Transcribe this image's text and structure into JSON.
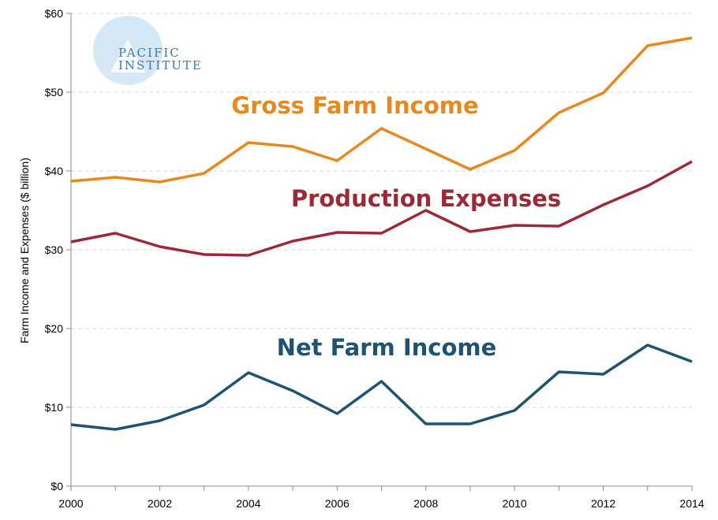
{
  "logo": {
    "line1": "PACIFIC",
    "line2": "INSTITUTE",
    "color": "#2f7fb0",
    "circle_color": "#d6e8f5"
  },
  "chart_data": {
    "type": "line",
    "title": "",
    "xlabel": "",
    "ylabel": "Farm Income and Expenses ($ billion)",
    "x": [
      2000,
      2001,
      2002,
      2003,
      2004,
      2005,
      2006,
      2007,
      2008,
      2009,
      2010,
      2011,
      2012,
      2013,
      2014
    ],
    "xlim": [
      2000,
      2014
    ],
    "ylim": [
      0,
      60
    ],
    "x_ticks": [
      "2000",
      "2002",
      "2004",
      "2006",
      "2008",
      "2010",
      "2012",
      "2014"
    ],
    "y_ticks": [
      "$0",
      "$10",
      "$20",
      "$30",
      "$40",
      "$50",
      "$60"
    ],
    "grid": "horizontal dashed",
    "legend": "inline labels",
    "series": [
      {
        "name": "Gross Farm Income",
        "color": "#e8891f",
        "values": [
          38.7,
          39.2,
          38.6,
          39.7,
          43.6,
          43.1,
          41.3,
          45.4,
          42.8,
          40.2,
          42.6,
          47.4,
          49.9,
          55.9,
          56.9
        ]
      },
      {
        "name": "Production Expenses",
        "color": "#9b2a36",
        "values": [
          31.0,
          32.1,
          30.4,
          29.4,
          29.3,
          31.1,
          32.2,
          32.1,
          35.0,
          32.3,
          33.1,
          33.0,
          35.7,
          38.1,
          41.2
        ]
      },
      {
        "name": "Net Farm Income",
        "color": "#1f5373",
        "values": [
          7.8,
          7.2,
          8.3,
          10.3,
          14.4,
          12.1,
          9.2,
          13.3,
          7.9,
          7.9,
          9.6,
          14.5,
          14.2,
          17.9,
          15.8
        ]
      }
    ]
  }
}
